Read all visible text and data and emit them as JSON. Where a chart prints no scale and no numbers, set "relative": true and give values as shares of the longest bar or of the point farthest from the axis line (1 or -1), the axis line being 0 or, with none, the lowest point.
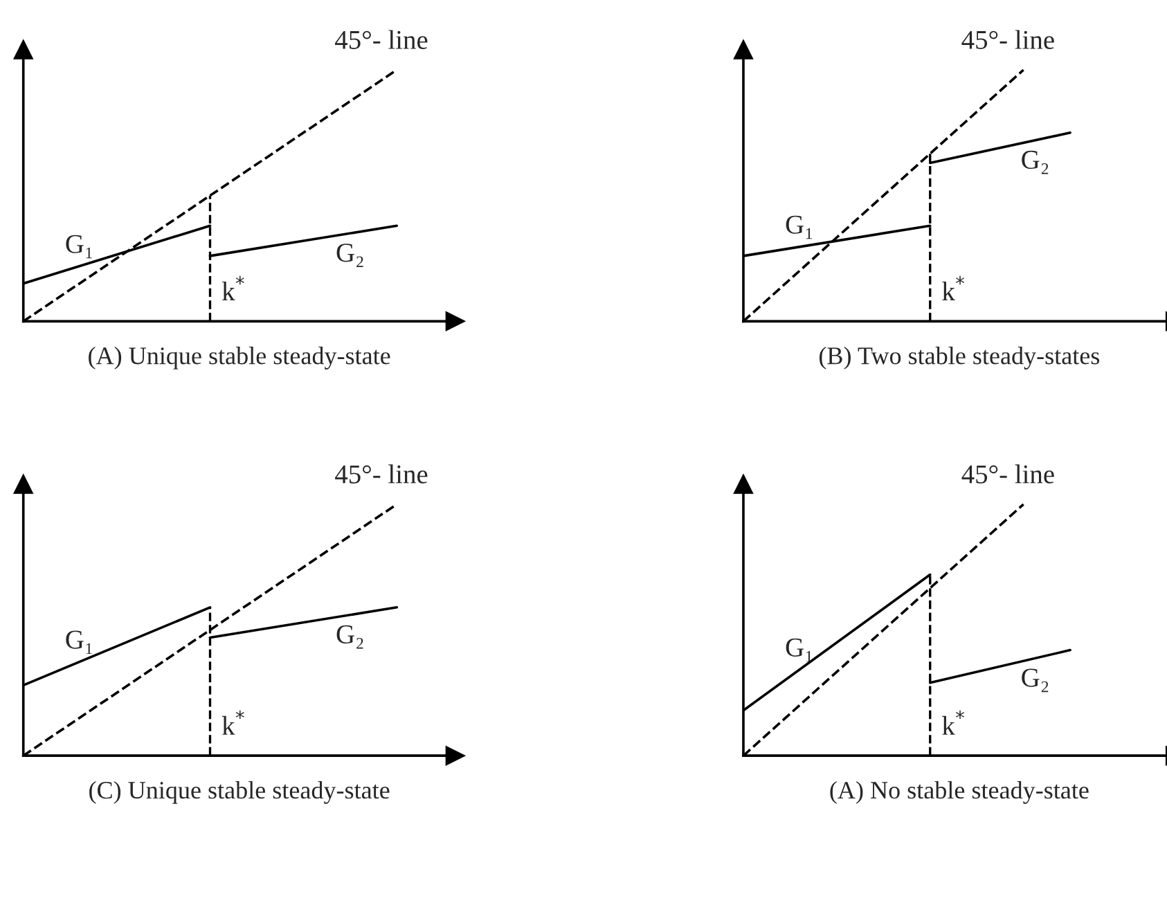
{
  "chart_data": [
    {
      "type": "line",
      "title": "(A) Unique stable steady-state",
      "relative": true,
      "grid": false,
      "legend": false,
      "annotations": [
        "k$^{*}$"
      ],
      "categories": [
        null,
        null,
        null,
        null,
        null,
        null,
        null,
        null,
        null,
        null,
        null,
        null,
        null,
        null,
        null,
        null,
        null
      ],
      "series": [
        {
          "name": "45°- line",
          "color": "#000000",
          "line_style": "dashed",
          "values": [
            0,
            null,
            null,
            null,
            null,
            null,
            null,
            null,
            null,
            null,
            null,
            null,
            null,
            null,
            null,
            null,
            1
          ]
        },
        {
          "name": "G₁",
          "color": "#000000",
          "line_style": "solid",
          "values": [
            0.15,
            null,
            null,
            null,
            null,
            null,
            null,
            null,
            0.38,
            null,
            null,
            null,
            null,
            null,
            null,
            null,
            null
          ]
        },
        {
          "name": "G₂",
          "color": "#000000",
          "line_style": "solid",
          "values": [
            null,
            null,
            null,
            null,
            null,
            null,
            null,
            null,
            0.26,
            null,
            null,
            null,
            null,
            null,
            null,
            null,
            0.38
          ]
        }
      ]
    },
    {
      "type": "line",
      "title": "(B) Two stable steady-states",
      "relative": true,
      "grid": false,
      "legend": false,
      "annotations": [
        "k$^{*}$"
      ],
      "categories": [
        null,
        null,
        null,
        null,
        null,
        null,
        null,
        null,
        null,
        null,
        null,
        null,
        null,
        null,
        null,
        null,
        null
      ],
      "series": [
        {
          "name": "45°- line",
          "color": "#000000",
          "line_style": "dashed",
          "values": [
            0,
            null,
            null,
            null,
            null,
            null,
            null,
            null,
            null,
            null,
            null,
            null,
            1,
            null,
            null,
            null,
            null
          ]
        },
        {
          "name": "G₁",
          "color": "#000000",
          "line_style": "solid",
          "values": [
            0.26,
            null,
            null,
            null,
            null,
            null,
            null,
            null,
            0.38,
            null,
            null,
            null,
            null,
            null,
            null,
            null,
            null
          ]
        },
        {
          "name": "G₂",
          "color": "#000000",
          "line_style": "solid",
          "values": [
            null,
            null,
            null,
            null,
            null,
            null,
            null,
            null,
            0.63,
            null,
            null,
            null,
            null,
            null,
            0.75,
            null,
            null
          ]
        }
      ]
    },
    {
      "type": "line",
      "title": "(C) Unique stable steady-state",
      "relative": true,
      "grid": false,
      "legend": false,
      "annotations": [
        "k$^{*}$"
      ],
      "categories": [
        null,
        null,
        null,
        null,
        null,
        null,
        null,
        null,
        null,
        null,
        null,
        null,
        null,
        null,
        null,
        null,
        null
      ],
      "series": [
        {
          "name": "45°- line",
          "color": "#000000",
          "line_style": "dashed",
          "values": [
            0,
            null,
            null,
            null,
            null,
            null,
            null,
            null,
            null,
            null,
            null,
            null,
            null,
            null,
            null,
            null,
            1
          ]
        },
        {
          "name": "G₁",
          "color": "#000000",
          "line_style": "solid",
          "values": [
            0.28,
            null,
            null,
            null,
            null,
            null,
            null,
            null,
            0.59,
            null,
            null,
            null,
            null,
            null,
            null,
            null,
            null
          ]
        },
        {
          "name": "G₂",
          "color": "#000000",
          "line_style": "solid",
          "values": [
            null,
            null,
            null,
            null,
            null,
            null,
            null,
            null,
            0.47,
            null,
            null,
            null,
            null,
            null,
            null,
            null,
            0.59
          ]
        }
      ]
    },
    {
      "type": "line",
      "title": "(A) No stable steady-state",
      "relative": true,
      "grid": false,
      "legend": false,
      "annotations": [
        "k$^{*}$"
      ],
      "categories": [
        null,
        null,
        null,
        null,
        null,
        null,
        null,
        null,
        null,
        null,
        null,
        null,
        null,
        null,
        null,
        null,
        null
      ],
      "series": [
        {
          "name": "45°- line",
          "color": "#000000",
          "line_style": "dashed",
          "values": [
            0,
            null,
            null,
            null,
            null,
            null,
            null,
            null,
            null,
            null,
            null,
            null,
            1,
            null,
            null,
            null,
            null
          ]
        },
        {
          "name": "G₁",
          "color": "#000000",
          "line_style": "solid",
          "values": [
            0.18,
            null,
            null,
            null,
            null,
            null,
            null,
            null,
            0.72,
            null,
            null,
            null,
            null,
            null,
            null,
            null,
            null
          ]
        },
        {
          "name": "G₂",
          "color": "#000000",
          "line_style": "solid",
          "values": [
            null,
            null,
            null,
            null,
            null,
            null,
            null,
            null,
            0.29,
            null,
            null,
            null,
            null,
            null,
            0.42,
            null,
            null
          ]
        }
      ]
    }
  ]
}
